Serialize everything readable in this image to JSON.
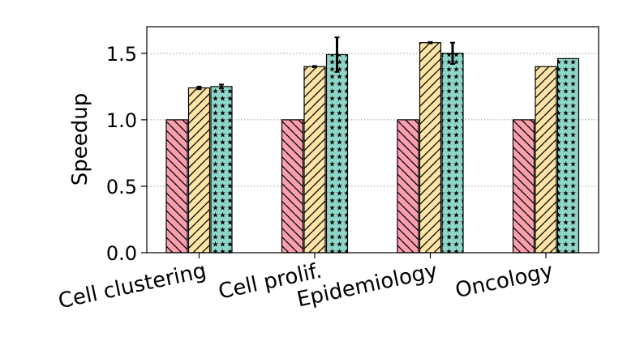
{
  "chart_data": {
    "type": "bar",
    "title": "",
    "xlabel": "",
    "ylabel": "Speedup",
    "ylim": [
      0,
      1.7
    ],
    "yticks": [
      0.0,
      0.5,
      1.0,
      1.5
    ],
    "ytick_labels": [
      "0.0",
      "0.5",
      "1.0",
      "1.5"
    ],
    "grid": "horizontal-dotted",
    "legend": "none",
    "categories": [
      "Cell clustering",
      "Cell prolif.",
      "Epidemiology",
      "Oncology"
    ],
    "series": [
      {
        "name": "series-1",
        "color": "#f99fad",
        "hatch": "backslash",
        "values": [
          1.0,
          1.0,
          1.0,
          1.0
        ],
        "errors": [
          0,
          0,
          0,
          0
        ]
      },
      {
        "name": "series-2",
        "color": "#fde4a6",
        "hatch": "slash",
        "values": [
          1.24,
          1.4,
          1.58,
          1.4
        ],
        "errors": [
          0.01,
          0.005,
          0.005,
          0
        ]
      },
      {
        "name": "series-3",
        "color": "#8ed6c8",
        "hatch": "star",
        "values": [
          1.25,
          1.49,
          1.5,
          1.46
        ],
        "errors": [
          0.015,
          0.13,
          0.08,
          0
        ]
      }
    ]
  }
}
